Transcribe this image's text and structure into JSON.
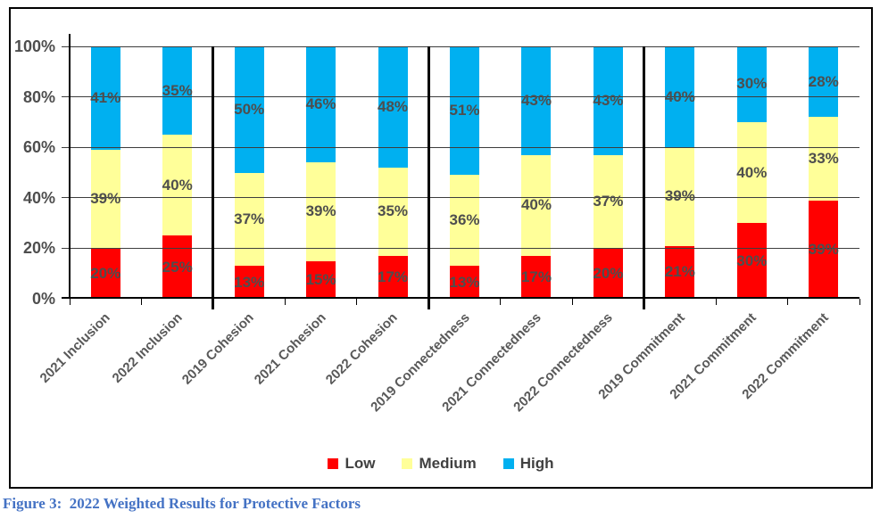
{
  "figure": {
    "caption": "Figure 3:  2022 Weighted Results for Protective Factors",
    "caption_color": "#4472C4"
  },
  "chart_data": {
    "type": "bar",
    "stacked": true,
    "title": "",
    "xlabel": "",
    "ylabel": "",
    "ylim": [
      0,
      100
    ],
    "grid": true,
    "legend_position": "bottom",
    "y_ticks": [
      "0%",
      "20%",
      "40%",
      "60%",
      "80%",
      "100%"
    ],
    "categories": [
      "2021 Inclusion",
      "2022 Inclusion",
      "2019 Cohesion",
      "2021 Cohesion",
      "2022 Cohesion",
      "2019 Connectedness",
      "2021 Connectedness",
      "2022 Connectedness",
      "2019 Commitment",
      "2021 Commitment",
      "2022 Commitment"
    ],
    "series": [
      {
        "name": "Low",
        "color": "#FF0000",
        "values": [
          20,
          25,
          13,
          15,
          17,
          13,
          17,
          20,
          21,
          30,
          39
        ]
      },
      {
        "name": "Medium",
        "color": "#FFFF99",
        "values": [
          39,
          40,
          37,
          39,
          35,
          36,
          40,
          37,
          39,
          40,
          33
        ]
      },
      {
        "name": "High",
        "color": "#00B0F0",
        "values": [
          41,
          35,
          50,
          46,
          48,
          51,
          43,
          43,
          40,
          30,
          28
        ]
      }
    ],
    "data_label_suffix": "%",
    "group_separators_after": [
      1,
      4,
      7
    ]
  }
}
